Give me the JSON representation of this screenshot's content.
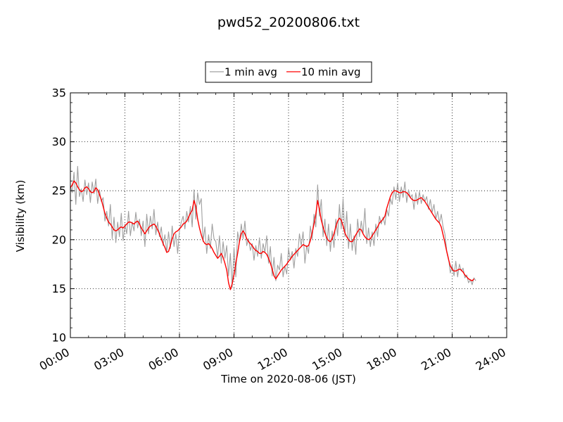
{
  "chart_data": {
    "type": "line",
    "title": "pwd52_20200806.txt",
    "xlabel": "Time on 2020-08-06 (JST)",
    "ylabel": "Visibility (km)",
    "xlim": [
      0,
      24
    ],
    "ylim": [
      10,
      35
    ],
    "x_ticks": [
      "00:00",
      "03:00",
      "06:00",
      "09:00",
      "12:00",
      "15:00",
      "18:00",
      "21:00",
      "24:00"
    ],
    "y_ticks": [
      "10",
      "15",
      "20",
      "25",
      "30",
      "35"
    ],
    "grid": true,
    "legend_position": "above-plot-center",
    "series": [
      {
        "name": "1 min avg",
        "color": "#a0a0a0",
        "sample_interval_hours": 0.1,
        "values": [
          25.5,
          24.8,
          26.9,
          23.6,
          27.5,
          24.4,
          25.2,
          23.9,
          26.1,
          24.6,
          25.8,
          23.8,
          25.9,
          24.7,
          26.2,
          23.7,
          25.1,
          23.9,
          24.3,
          21.9,
          22.9,
          21.4,
          23.6,
          20.1,
          22.3,
          19.7,
          21.8,
          20.3,
          22.7,
          19.9,
          21.6,
          20.6,
          22.9,
          20.4,
          21.8,
          20.9,
          22.8,
          21.2,
          22.1,
          20.4,
          21.9,
          19.3,
          22.6,
          20.6,
          22.4,
          21.1,
          23.1,
          20.5,
          21.8,
          20.3,
          21.3,
          19.4,
          20.5,
          18.7,
          20.8,
          19.1,
          21.4,
          19.3,
          20.6,
          18.6,
          20.9,
          21.8,
          22.4,
          21.1,
          22.9,
          21.8,
          23.4,
          21.3,
          25.1,
          22.1,
          24.8,
          23.6,
          24.2,
          19.8,
          21.3,
          18.6,
          20.5,
          19.1,
          21.6,
          20.1,
          19.8,
          18.2,
          20.4,
          17.6,
          19.8,
          18.1,
          19.4,
          16.3,
          18.6,
          15.1,
          19.2,
          16.2,
          20.8,
          19.7,
          21.6,
          20.1,
          21.9,
          19.4,
          20.1,
          18.9,
          19.6,
          17.9,
          19.4,
          18.3,
          20.2,
          18.1,
          19.6,
          18.7,
          20.4,
          17.6,
          19.3,
          16.3,
          18.2,
          15.8,
          17.4,
          16.9,
          18.6,
          16.2,
          17.3,
          16.5,
          19.1,
          17.9,
          18.8,
          17.1,
          19.1,
          18.3,
          20.6,
          19.4,
          20.8,
          17.6,
          19.4,
          18.6,
          21.4,
          20.1,
          22.6,
          21.3,
          25.6,
          22.4,
          24.1,
          20.3,
          22.1,
          19.4,
          21.6,
          18.8,
          20.9,
          19.2,
          22.1,
          20.4,
          23.6,
          21.1,
          24.2,
          20.3,
          22.9,
          19.1,
          21.6,
          18.9,
          20.4,
          18.5,
          22.1,
          20.3,
          21.9,
          20.6,
          23.2,
          19.6,
          21.2,
          19.3,
          20.8,
          19.4,
          21.6,
          20.3,
          22.4,
          21.6,
          22.3,
          21.5,
          23.1,
          22.4,
          24.2,
          23.6,
          25.4,
          24.1,
          25.8,
          23.9,
          25.4,
          24.3,
          25.9,
          23.8,
          25.1,
          24.3,
          24.6,
          23.1,
          24.8,
          23.6,
          24.9,
          23.7,
          24.6,
          23.9,
          24.4,
          23.1,
          24.1,
          22.8,
          23.6,
          22.1,
          22.9,
          21.7,
          22.6,
          21.3,
          20.6,
          18.9,
          18.1,
          16.6,
          17.4,
          16.3,
          17.8,
          16.2,
          17.5,
          16.8,
          17.1,
          16.1,
          16.4,
          15.6,
          15.9,
          15.4,
          16.1,
          15.8
        ]
      },
      {
        "name": "10 min avg",
        "color": "#ff0000",
        "sample_interval_hours": 0.1,
        "values": [
          25.3,
          25.6,
          26.0,
          25.8,
          25.4,
          25.1,
          24.9,
          25.0,
          25.3,
          25.4,
          25.2,
          24.9,
          24.8,
          24.9,
          25.3,
          25.1,
          24.6,
          24.1,
          23.4,
          22.7,
          22.2,
          21.8,
          21.6,
          21.3,
          21.0,
          20.9,
          21.0,
          21.2,
          21.3,
          21.2,
          21.4,
          21.6,
          21.8,
          21.8,
          21.7,
          21.6,
          21.8,
          21.9,
          21.6,
          21.2,
          20.9,
          20.6,
          20.9,
          21.2,
          21.4,
          21.5,
          21.6,
          21.4,
          21.0,
          20.6,
          20.1,
          19.6,
          19.2,
          18.7,
          18.8,
          19.4,
          20.1,
          20.6,
          20.8,
          20.9,
          21.1,
          21.3,
          21.6,
          21.7,
          21.9,
          22.3,
          22.7,
          23.0,
          24.0,
          23.4,
          22.1,
          21.2,
          20.5,
          19.9,
          19.6,
          19.5,
          19.6,
          19.4,
          19.1,
          18.7,
          18.4,
          18.1,
          18.3,
          18.6,
          18.2,
          17.6,
          16.9,
          15.6,
          14.9,
          15.5,
          16.4,
          17.6,
          18.6,
          19.8,
          20.6,
          20.9,
          20.6,
          20.1,
          19.8,
          19.6,
          19.4,
          19.1,
          18.9,
          18.8,
          18.6,
          18.6,
          18.8,
          18.7,
          18.5,
          18.1,
          17.6,
          17.0,
          16.3,
          16.0,
          16.3,
          16.6,
          16.9,
          17.1,
          17.3,
          17.5,
          17.8,
          18.0,
          18.3,
          18.5,
          18.7,
          18.9,
          19.1,
          19.3,
          19.5,
          19.4,
          19.3,
          19.4,
          19.9,
          20.7,
          21.6,
          22.6,
          24.0,
          23.1,
          22.0,
          21.3,
          20.7,
          20.2,
          19.9,
          19.8,
          20.1,
          20.6,
          21.3,
          21.9,
          22.2,
          22.0,
          21.4,
          20.7,
          20.3,
          20.0,
          19.8,
          19.8,
          20.1,
          20.5,
          20.8,
          21.1,
          21.0,
          20.6,
          20.3,
          20.1,
          20.0,
          20.1,
          20.4,
          20.7,
          21.0,
          21.3,
          21.7,
          21.9,
          22.1,
          22.4,
          23.2,
          23.8,
          24.4,
          24.8,
          25.0,
          25.0,
          24.9,
          24.8,
          24.8,
          24.9,
          24.9,
          24.8,
          24.6,
          24.3,
          24.1,
          24.0,
          24.0,
          24.1,
          24.2,
          24.3,
          24.1,
          23.9,
          23.6,
          23.3,
          23.0,
          22.7,
          22.4,
          22.1,
          21.9,
          21.7,
          21.3,
          20.5,
          19.7,
          18.8,
          18.0,
          17.3,
          17.0,
          16.8,
          16.8,
          16.9,
          17.0,
          16.9,
          16.7,
          16.4,
          16.2,
          16.0,
          15.9,
          15.8,
          16.0
        ]
      }
    ]
  }
}
